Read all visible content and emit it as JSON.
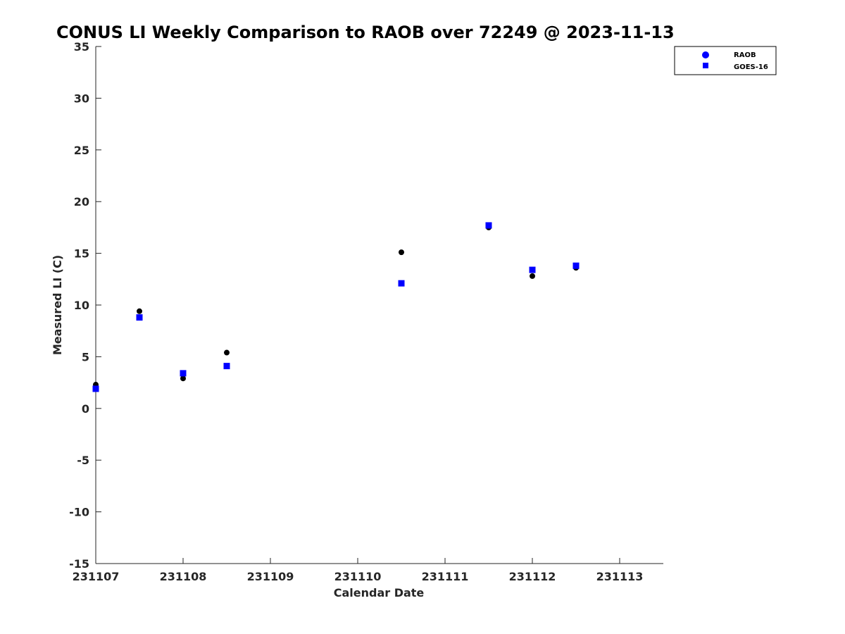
{
  "chart_data": {
    "type": "scatter",
    "title": "CONUS LI Weekly Comparison to RAOB over 72249 @ 2023-11-13",
    "xlabel": "Calendar Date",
    "ylabel": "Measured LI (C)",
    "x_ticks": [
      {
        "value": 0,
        "label": "231107"
      },
      {
        "value": 1,
        "label": "231108"
      },
      {
        "value": 2,
        "label": "231109"
      },
      {
        "value": 3,
        "label": "231110"
      },
      {
        "value": 4,
        "label": "231111"
      },
      {
        "value": 5,
        "label": "231112"
      },
      {
        "value": 6,
        "label": "231113"
      }
    ],
    "y_ticks": [
      35,
      30,
      25,
      20,
      15,
      10,
      5,
      0,
      -5,
      -10,
      -15
    ],
    "xlim": [
      0,
      6.5
    ],
    "ylim": [
      -15,
      35
    ],
    "grid": false,
    "legend_position": "top-right",
    "series": [
      {
        "name": "RAOB",
        "marker": "circle",
        "color": "#0000ff",
        "point_color": "#000000",
        "points": [
          {
            "x": 0,
            "y": 2.3
          },
          {
            "x": 0.5,
            "y": 9.4
          },
          {
            "x": 1,
            "y": 2.9
          },
          {
            "x": 1.5,
            "y": 5.4
          },
          {
            "x": 3.5,
            "y": 15.1
          },
          {
            "x": 4.5,
            "y": 17.5
          },
          {
            "x": 5,
            "y": 12.8
          },
          {
            "x": 5.5,
            "y": 13.6
          }
        ]
      },
      {
        "name": "GOES-16",
        "marker": "square",
        "color": "#0000ff",
        "point_color": "#0000ff",
        "points": [
          {
            "x": 0,
            "y": 1.9
          },
          {
            "x": 0.5,
            "y": 8.8
          },
          {
            "x": 1,
            "y": 3.4
          },
          {
            "x": 1.5,
            "y": 4.1
          },
          {
            "x": 3.5,
            "y": 12.1
          },
          {
            "x": 4.5,
            "y": 17.7
          },
          {
            "x": 5,
            "y": 13.4
          },
          {
            "x": 5.5,
            "y": 13.8
          }
        ]
      }
    ]
  }
}
